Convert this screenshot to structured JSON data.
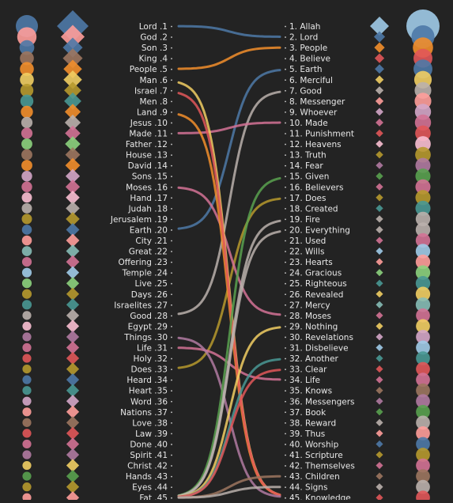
{
  "chart_data": {
    "type": "slopegraph",
    "left_column": {
      "words": [
        "Lord",
        "God",
        "Son",
        "King",
        "People",
        "Man",
        "Israel",
        "Men",
        "Land",
        "Jesus",
        "Made",
        "Father",
        "House",
        "David",
        "Sons",
        "Moses",
        "Hand",
        "Judah",
        "Jerusalem",
        "Earth",
        "City",
        "Great",
        "Offering",
        "Temple",
        "Live",
        "Days",
        "Israelites",
        "Good",
        "Egypt",
        "Things",
        "Life",
        "Holy",
        "Does",
        "Heard",
        "Heart",
        "Word",
        "Nations",
        "Love",
        "Law",
        "Done",
        "Spirit",
        "Christ",
        "Hands",
        "Eyes",
        "Fat"
      ]
    },
    "right_column": {
      "words": [
        "Allah",
        "Lord",
        "People",
        "Believe",
        "Earth",
        "Merciful",
        "Good",
        "Messenger",
        "Whoever",
        "Made",
        "Punishment",
        "Heavens",
        "Truth",
        "Fear",
        "Given",
        "Believers",
        "Does",
        "Created",
        "Fire",
        "Everything",
        "Used",
        "Wills",
        "Hearts",
        "Gracious",
        "Righteous",
        "Revealed",
        "Mercy",
        "Moses",
        "Nothing",
        "Revelations",
        "Disbelieve",
        "Another",
        "Clear",
        "Life",
        "Knows",
        "Messengers",
        "Book",
        "Reward",
        "Thus",
        "Worship",
        "Scripture",
        "Themselves",
        "Children",
        "Signs",
        "Knowledge"
      ]
    },
    "connections": [
      {
        "word": "Lord",
        "left_rank": 1,
        "right_rank": 2,
        "color": "#4e79a7"
      },
      {
        "word": "People",
        "left_rank": 5,
        "right_rank": 3,
        "color": "#f28e2b"
      },
      {
        "word": "Earth",
        "left_rank": 20,
        "right_rank": 5,
        "color": "#4e79a7"
      },
      {
        "word": "Good",
        "left_rank": 28,
        "right_rank": 7,
        "color": "#bab0ac"
      },
      {
        "word": "Made",
        "left_rank": 11,
        "right_rank": 10,
        "color": "#d37295"
      },
      {
        "word": "Does",
        "left_rank": 33,
        "right_rank": 17,
        "color": "#b6992d"
      },
      {
        "word": "Moses",
        "left_rank": 16,
        "right_rank": 28,
        "color": "#d37295"
      },
      {
        "word": "Life",
        "left_rank": 31,
        "right_rank": 34,
        "color": "#d37295"
      },
      {
        "word": "Man",
        "left_rank": 6,
        "right_rank": 45,
        "color": "#f1ce63"
      },
      {
        "word": "Land",
        "left_rank": 9,
        "right_rank": 45,
        "color": "#f28e2b"
      },
      {
        "word": "Israel",
        "left_rank": 7,
        "right_rank": 45,
        "color": "#e15759"
      },
      {
        "word": "Things",
        "left_rank": 30,
        "right_rank": 45,
        "color": "#b07aa1"
      },
      {
        "word": "Given",
        "left_rank": 45,
        "right_rank": 15,
        "color": "#59a14f"
      },
      {
        "word": "Fire",
        "left_rank": 45,
        "right_rank": 19,
        "color": "#bab0ac"
      },
      {
        "word": "Everything",
        "left_rank": 45,
        "right_rank": 20,
        "color": "#bab0ac"
      },
      {
        "word": "Nothing",
        "left_rank": 45,
        "right_rank": 29,
        "color": "#f1ce63"
      },
      {
        "word": "Another",
        "left_rank": 45,
        "right_rank": 32,
        "color": "#499894"
      },
      {
        "word": "Clear",
        "left_rank": 45,
        "right_rank": 33,
        "color": "#e15759"
      },
      {
        "word": "Children",
        "left_rank": 45,
        "right_rank": 43,
        "color": "#9c755f"
      },
      {
        "word": "Signs",
        "left_rank": 45,
        "right_rank": 44,
        "color": "#bab0ac"
      }
    ],
    "left_circles": [
      {
        "size": 1.0,
        "color": "#4e79a7"
      },
      {
        "size": 0.85,
        "color": "#ff9d9a"
      },
      {
        "size": 0.6,
        "color": "#4e79a7"
      },
      {
        "size": 0.55,
        "color": "#9c755f"
      },
      {
        "size": 0.55,
        "color": "#f28e2b"
      },
      {
        "size": 0.55,
        "color": "#f1ce63"
      },
      {
        "size": 0.5,
        "color": "#b6992d"
      },
      {
        "size": 0.5,
        "color": "#499894"
      },
      {
        "size": 0.45,
        "color": "#f28e2b"
      },
      {
        "size": 0.4,
        "color": "#bab0ac"
      },
      {
        "size": 0.4,
        "color": "#d37295"
      },
      {
        "size": 0.38,
        "color": "#8cd17d"
      },
      {
        "size": 0.38,
        "color": "#9c755f"
      },
      {
        "size": 0.38,
        "color": "#f28e2b"
      },
      {
        "size": 0.36,
        "color": "#d4a6c8"
      },
      {
        "size": 0.36,
        "color": "#d37295"
      },
      {
        "size": 0.34,
        "color": "#fabfd2"
      },
      {
        "size": 0.34,
        "color": "#bab0ac"
      },
      {
        "size": 0.34,
        "color": "#b6992d"
      },
      {
        "size": 0.32,
        "color": "#4e79a7"
      },
      {
        "size": 0.32,
        "color": "#ff9d9a"
      },
      {
        "size": 0.32,
        "color": "#86bcb6"
      },
      {
        "size": 0.3,
        "color": "#d37295"
      },
      {
        "size": 0.3,
        "color": "#a0cbe8"
      },
      {
        "size": 0.3,
        "color": "#8cd17d"
      },
      {
        "size": 0.3,
        "color": "#b6992d"
      },
      {
        "size": 0.3,
        "color": "#499894"
      },
      {
        "size": 0.28,
        "color": "#bab0ac"
      },
      {
        "size": 0.28,
        "color": "#fabfd2"
      },
      {
        "size": 0.28,
        "color": "#b07aa1"
      },
      {
        "size": 0.28,
        "color": "#d37295"
      },
      {
        "size": 0.28,
        "color": "#e15759"
      },
      {
        "size": 0.28,
        "color": "#b6992d"
      },
      {
        "size": 0.28,
        "color": "#4e79a7"
      },
      {
        "size": 0.28,
        "color": "#499894"
      },
      {
        "size": 0.28,
        "color": "#d4a6c8"
      },
      {
        "size": 0.28,
        "color": "#ff9d9a"
      },
      {
        "size": 0.28,
        "color": "#9c755f"
      },
      {
        "size": 0.28,
        "color": "#e15759"
      },
      {
        "size": 0.28,
        "color": "#d37295"
      },
      {
        "size": 0.28,
        "color": "#b07aa1"
      },
      {
        "size": 0.28,
        "color": "#f1ce63"
      },
      {
        "size": 0.28,
        "color": "#59a14f"
      },
      {
        "size": 0.28,
        "color": "#b6992d"
      },
      {
        "size": 0.28,
        "color": "#ff9d9a"
      }
    ],
    "left_diamonds": [
      {
        "size": 1.0,
        "color": "#4e79a7"
      },
      {
        "size": 0.7,
        "color": "#ff9d9a"
      },
      {
        "size": 0.55,
        "color": "#4e79a7"
      },
      {
        "size": 0.55,
        "color": "#9c755f"
      },
      {
        "size": 0.5,
        "color": "#f28e2b"
      },
      {
        "size": 0.5,
        "color": "#f1ce63"
      },
      {
        "size": 0.45,
        "color": "#b6992d"
      },
      {
        "size": 0.45,
        "color": "#499894"
      },
      {
        "size": 0.4,
        "color": "#f28e2b"
      },
      {
        "size": 0.4,
        "color": "#bab0ac"
      },
      {
        "size": 0.38,
        "color": "#d37295"
      },
      {
        "size": 0.38,
        "color": "#8cd17d"
      },
      {
        "size": 0.36,
        "color": "#9c755f"
      },
      {
        "size": 0.36,
        "color": "#f28e2b"
      },
      {
        "size": 0.34,
        "color": "#d4a6c8"
      },
      {
        "size": 0.34,
        "color": "#d37295"
      },
      {
        "size": 0.32,
        "color": "#fabfd2"
      },
      {
        "size": 0.32,
        "color": "#bab0ac"
      },
      {
        "size": 0.32,
        "color": "#b6992d"
      },
      {
        "size": 0.3,
        "color": "#4e79a7"
      },
      {
        "size": 0.3,
        "color": "#ff9d9a"
      },
      {
        "size": 0.3,
        "color": "#86bcb6"
      },
      {
        "size": 0.3,
        "color": "#d37295"
      },
      {
        "size": 0.28,
        "color": "#a0cbe8"
      },
      {
        "size": 0.28,
        "color": "#8cd17d"
      },
      {
        "size": 0.28,
        "color": "#b6992d"
      },
      {
        "size": 0.28,
        "color": "#499894"
      },
      {
        "size": 0.28,
        "color": "#bab0ac"
      },
      {
        "size": 0.28,
        "color": "#fabfd2"
      },
      {
        "size": 0.28,
        "color": "#b07aa1"
      },
      {
        "size": 0.28,
        "color": "#d37295"
      },
      {
        "size": 0.28,
        "color": "#e15759"
      },
      {
        "size": 0.28,
        "color": "#b6992d"
      },
      {
        "size": 0.28,
        "color": "#4e79a7"
      },
      {
        "size": 0.28,
        "color": "#499894"
      },
      {
        "size": 0.28,
        "color": "#d4a6c8"
      },
      {
        "size": 0.28,
        "color": "#ff9d9a"
      },
      {
        "size": 0.28,
        "color": "#9c755f"
      },
      {
        "size": 0.28,
        "color": "#e15759"
      },
      {
        "size": 0.28,
        "color": "#d37295"
      },
      {
        "size": 0.28,
        "color": "#b07aa1"
      },
      {
        "size": 0.28,
        "color": "#f1ce63"
      },
      {
        "size": 0.28,
        "color": "#59a14f"
      },
      {
        "size": 0.28,
        "color": "#b6992d"
      },
      {
        "size": 0.28,
        "color": "#ff9d9a"
      }
    ],
    "right_diamonds": [
      {
        "size": 1.0,
        "color": "#a0cbe8"
      },
      {
        "size": 0.5,
        "color": "#4e79a7"
      },
      {
        "size": 0.45,
        "color": "#f28e2b"
      },
      {
        "size": 0.4,
        "color": "#e15759"
      },
      {
        "size": 0.38,
        "color": "#4e79a7"
      },
      {
        "size": 0.32,
        "color": "#f1ce63"
      },
      {
        "size": 0.3,
        "color": "#bab0ac"
      },
      {
        "size": 0.3,
        "color": "#ff9d9a"
      },
      {
        "size": 0.28,
        "color": "#d4a6c8"
      },
      {
        "size": 0.28,
        "color": "#d37295"
      },
      {
        "size": 0.26,
        "color": "#e15759"
      },
      {
        "size": 0.26,
        "color": "#fabfd2"
      },
      {
        "size": 0.26,
        "color": "#b6992d"
      },
      {
        "size": 0.25,
        "color": "#b07aa1"
      },
      {
        "size": 0.25,
        "color": "#59a14f"
      },
      {
        "size": 0.25,
        "color": "#d37295"
      },
      {
        "size": 0.25,
        "color": "#b6992d"
      },
      {
        "size": 0.25,
        "color": "#499894"
      },
      {
        "size": 0.25,
        "color": "#bab0ac"
      },
      {
        "size": 0.25,
        "color": "#bab0ac"
      },
      {
        "size": 0.24,
        "color": "#d37295"
      },
      {
        "size": 0.24,
        "color": "#a0cbe8"
      },
      {
        "size": 0.24,
        "color": "#ff9d9a"
      },
      {
        "size": 0.24,
        "color": "#8cd17d"
      },
      {
        "size": 0.24,
        "color": "#499894"
      },
      {
        "size": 0.24,
        "color": "#f1ce63"
      },
      {
        "size": 0.24,
        "color": "#86bcb6"
      },
      {
        "size": 0.24,
        "color": "#d37295"
      },
      {
        "size": 0.24,
        "color": "#f1ce63"
      },
      {
        "size": 0.24,
        "color": "#d4a6c8"
      },
      {
        "size": 0.24,
        "color": "#a0cbe8"
      },
      {
        "size": 0.24,
        "color": "#499894"
      },
      {
        "size": 0.24,
        "color": "#e15759"
      },
      {
        "size": 0.24,
        "color": "#d37295"
      },
      {
        "size": 0.24,
        "color": "#9c755f"
      },
      {
        "size": 0.24,
        "color": "#b07aa1"
      },
      {
        "size": 0.24,
        "color": "#59a14f"
      },
      {
        "size": 0.24,
        "color": "#bab0ac"
      },
      {
        "size": 0.24,
        "color": "#ff9d9a"
      },
      {
        "size": 0.24,
        "color": "#4e79a7"
      },
      {
        "size": 0.24,
        "color": "#b6992d"
      },
      {
        "size": 0.24,
        "color": "#d37295"
      },
      {
        "size": 0.24,
        "color": "#9c755f"
      },
      {
        "size": 0.24,
        "color": "#bab0ac"
      },
      {
        "size": 0.24,
        "color": "#e15759"
      }
    ],
    "right_circles": [
      {
        "size": 1.0,
        "color": "#a0cbe8"
      },
      {
        "size": 0.65,
        "color": "#4e79a7"
      },
      {
        "size": 0.55,
        "color": "#f28e2b"
      },
      {
        "size": 0.5,
        "color": "#e15759"
      },
      {
        "size": 0.5,
        "color": "#4e79a7"
      },
      {
        "size": 0.45,
        "color": "#f1ce63"
      },
      {
        "size": 0.42,
        "color": "#bab0ac"
      },
      {
        "size": 0.42,
        "color": "#ff9d9a"
      },
      {
        "size": 0.4,
        "color": "#d4a6c8"
      },
      {
        "size": 0.4,
        "color": "#d37295"
      },
      {
        "size": 0.38,
        "color": "#e15759"
      },
      {
        "size": 0.38,
        "color": "#fabfd2"
      },
      {
        "size": 0.38,
        "color": "#b6992d"
      },
      {
        "size": 0.36,
        "color": "#b07aa1"
      },
      {
        "size": 0.36,
        "color": "#59a14f"
      },
      {
        "size": 0.36,
        "color": "#d37295"
      },
      {
        "size": 0.36,
        "color": "#b6992d"
      },
      {
        "size": 0.36,
        "color": "#499894"
      },
      {
        "size": 0.34,
        "color": "#bab0ac"
      },
      {
        "size": 0.34,
        "color": "#bab0ac"
      },
      {
        "size": 0.34,
        "color": "#d37295"
      },
      {
        "size": 0.34,
        "color": "#a0cbe8"
      },
      {
        "size": 0.34,
        "color": "#ff9d9a"
      },
      {
        "size": 0.34,
        "color": "#8cd17d"
      },
      {
        "size": 0.34,
        "color": "#499894"
      },
      {
        "size": 0.34,
        "color": "#f1ce63"
      },
      {
        "size": 0.34,
        "color": "#86bcb6"
      },
      {
        "size": 0.32,
        "color": "#d37295"
      },
      {
        "size": 0.32,
        "color": "#f1ce63"
      },
      {
        "size": 0.32,
        "color": "#d4a6c8"
      },
      {
        "size": 0.32,
        "color": "#a0cbe8"
      },
      {
        "size": 0.32,
        "color": "#499894"
      },
      {
        "size": 0.32,
        "color": "#e15759"
      },
      {
        "size": 0.32,
        "color": "#d37295"
      },
      {
        "size": 0.32,
        "color": "#9c755f"
      },
      {
        "size": 0.32,
        "color": "#b07aa1"
      },
      {
        "size": 0.32,
        "color": "#59a14f"
      },
      {
        "size": 0.32,
        "color": "#bab0ac"
      },
      {
        "size": 0.32,
        "color": "#ff9d9a"
      },
      {
        "size": 0.32,
        "color": "#4e79a7"
      },
      {
        "size": 0.32,
        "color": "#b6992d"
      },
      {
        "size": 0.32,
        "color": "#d37295"
      },
      {
        "size": 0.32,
        "color": "#9c755f"
      },
      {
        "size": 0.32,
        "color": "#bab0ac"
      },
      {
        "size": 0.32,
        "color": "#e15759"
      }
    ]
  }
}
